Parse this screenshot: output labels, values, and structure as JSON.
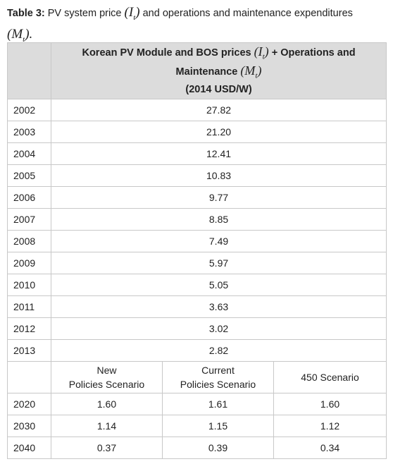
{
  "caption": {
    "label": "Table 3:",
    "text_before": "PV system price",
    "price_open": "(I",
    "price_subscript": "t",
    "price_close": ")",
    "text_after": "and operations and maintenance expenditures",
    "om_open": "(M",
    "om_subscript": "t",
    "om_close": ")."
  },
  "table": {
    "header": {
      "line_1": "Korean PV Module and BOS prices",
      "price_open": "(I",
      "price_subscript": "t",
      "price_close": ")",
      "line_1_end": "+ Operations and",
      "line_2": "Maintenance",
      "om_open": "(M",
      "om_subscript": "t",
      "om_close": ")",
      "unit": "(2014 USD/W)"
    },
    "historical_rows": [
      [
        "2002",
        "27.82"
      ],
      [
        "2003",
        "21.20"
      ],
      [
        "2004",
        "12.41"
      ],
      [
        "2005",
        "10.83"
      ],
      [
        "2006",
        "9.77"
      ],
      [
        "2007",
        "8.85"
      ],
      [
        "2008",
        "7.49"
      ],
      [
        "2009",
        "5.97"
      ],
      [
        "2010",
        "5.05"
      ],
      [
        "2011",
        "3.63"
      ],
      [
        "2012",
        "3.02"
      ],
      [
        "2013",
        "2.82"
      ]
    ],
    "scenario_header": [
      [
        "New",
        "Policies Scenario"
      ],
      [
        "Current",
        "Policies Scenario"
      ],
      [
        "450 Scenario"
      ]
    ],
    "scenario_rows": [
      [
        "2020",
        "1.60",
        "1.61",
        "1.60"
      ],
      [
        "2030",
        "1.14",
        "1.15",
        "1.12"
      ],
      [
        "2040",
        "0.37",
        "0.39",
        "0.34"
      ]
    ]
  }
}
